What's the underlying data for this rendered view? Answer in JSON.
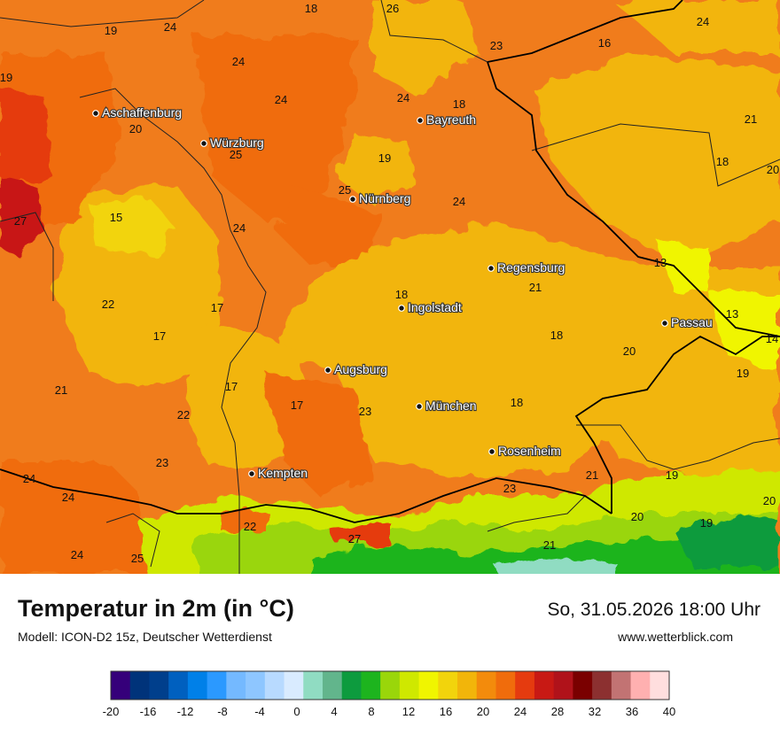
{
  "header": {
    "title": "Temperatur in 2m (in °C)",
    "model": "Modell: ICON-D2 15z, Deutscher Wetterdienst",
    "datetime": "So, 31.05.2026 18:00 Uhr",
    "website": "www.wetterblick.com"
  },
  "cities": [
    {
      "name": "Aschaffenburg"
    },
    {
      "name": "Würzburg"
    },
    {
      "name": "Bayreuth"
    },
    {
      "name": "Nürnberg"
    },
    {
      "name": "Regensburg"
    },
    {
      "name": "Ingolstadt"
    },
    {
      "name": "Passau"
    },
    {
      "name": "Augsburg"
    },
    {
      "name": "München"
    },
    {
      "name": "Rosenheim"
    },
    {
      "name": "Kempten"
    }
  ],
  "temperatures": [
    "18",
    "26",
    "19",
    "24",
    "23",
    "16",
    "19",
    "24",
    "24",
    "18",
    "24",
    "24",
    "21",
    "20",
    "25",
    "19",
    "18",
    "20",
    "25",
    "24",
    "27",
    "15",
    "24",
    "13",
    "21",
    "22",
    "17",
    "18",
    "13",
    "14",
    "17",
    "18",
    "20",
    "21",
    "17",
    "19",
    "17",
    "23",
    "18",
    "22",
    "23",
    "21",
    "19",
    "24",
    "24",
    "23",
    "20",
    "20",
    "22",
    "19",
    "27",
    "24",
    "25",
    "21"
  ],
  "legend": {
    "colors": [
      "#35007a",
      "#00337a",
      "#003f8c",
      "#0060bf",
      "#0080e8",
      "#2b99ff",
      "#74b9ff",
      "#8ec6ff",
      "#b8daff",
      "#d9ebff",
      "#90dcc2",
      "#62b58c",
      "#0d9b3e",
      "#1db41e",
      "#9ad60a",
      "#cfe800",
      "#f0f500",
      "#f2d40c",
      "#f2b50a",
      "#f38b0c",
      "#f06c0c",
      "#e53b0f",
      "#c81914",
      "#b0121a",
      "#7a0000",
      "#8c3030",
      "#c27373",
      "#ffb0b0",
      "#ffdede"
    ],
    "ticks": [
      "-20",
      "-16",
      "-12",
      "-8",
      "-4",
      "0",
      "4",
      "8",
      "12",
      "16",
      "20",
      "24",
      "28",
      "32",
      "36",
      "40"
    ]
  }
}
